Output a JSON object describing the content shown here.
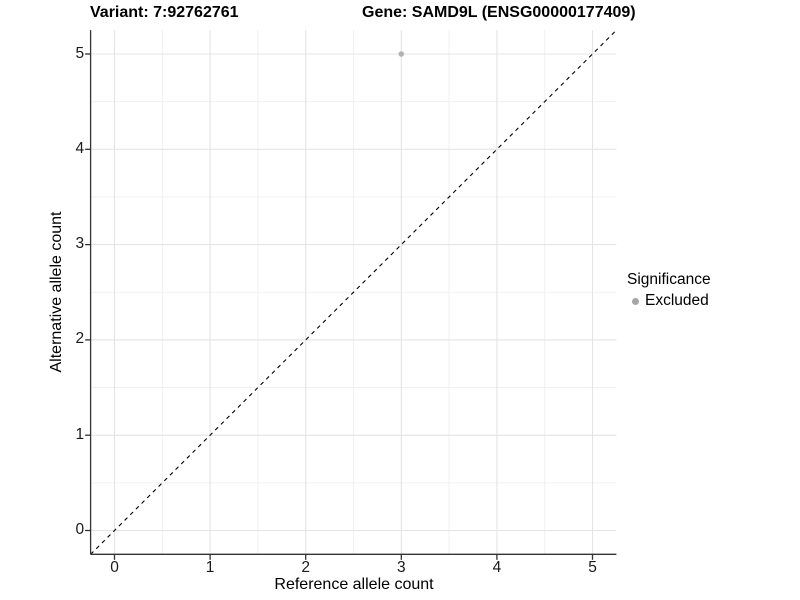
{
  "header": {
    "variant_title": "Variant: 7:92762761",
    "gene_title": "Gene: SAMD9L (ENSG00000177409)"
  },
  "chart_data": {
    "type": "scatter",
    "titles": [
      "Variant: 7:92762761",
      "Gene: SAMD9L (ENSG00000177409)"
    ],
    "xlabel": "Reference allele count",
    "ylabel": "Alternative allele count",
    "xlim": [
      -0.25,
      5.25
    ],
    "ylim": [
      -0.25,
      5.25
    ],
    "xticks": [
      0,
      1,
      2,
      3,
      4,
      5
    ],
    "yticks": [
      0,
      1,
      2,
      3,
      4,
      5
    ],
    "minor_xticks": [
      0.5,
      1.5,
      2.5,
      3.5,
      4.5
    ],
    "minor_yticks": [
      0.5,
      1.5,
      2.5,
      3.5,
      4.5
    ],
    "grid": "major+minor",
    "points": [
      {
        "x": 3,
        "y": 5,
        "series": "Excluded"
      }
    ],
    "reference_line": {
      "type": "identity",
      "slope": 1,
      "intercept": 0,
      "style": "dashed",
      "color": "#000000"
    },
    "legend": {
      "title": "Significance",
      "position": "right",
      "items": [
        {
          "label": "Excluded",
          "marker": "circle",
          "color": "#a6a6a6"
        }
      ]
    }
  },
  "colors": {
    "point": "#b3b3b3",
    "legend_marker": "#a6a6a6",
    "grid_major": "#e4e4e4",
    "grid_minor": "#f0f0f0",
    "axis_line": "#333333",
    "dashed_line": "#000000",
    "tick_text": "#1a1a1a"
  }
}
